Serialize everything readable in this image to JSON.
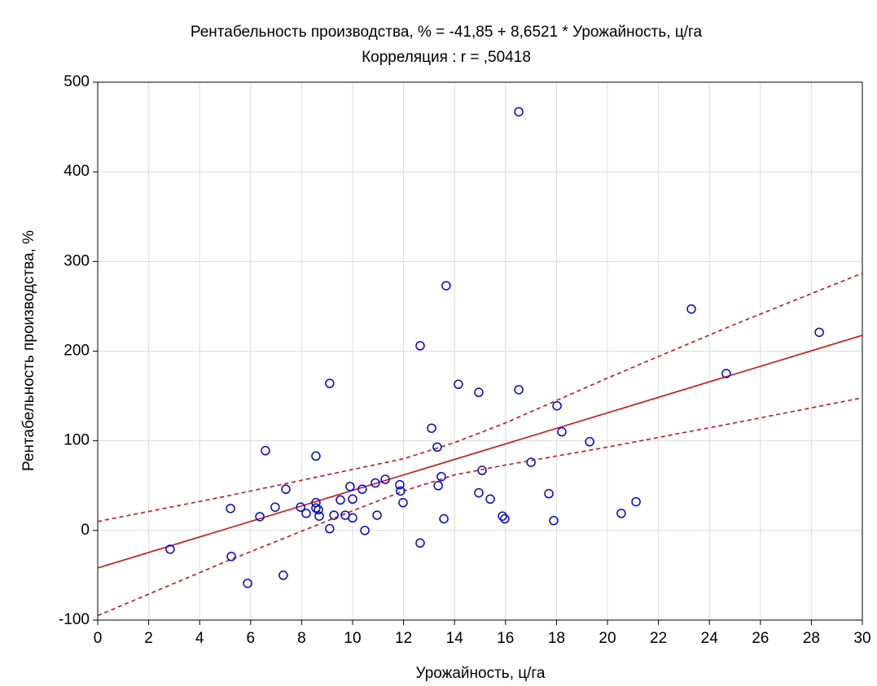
{
  "chart_data": {
    "type": "scatter",
    "title": "Рентабельность производства, % = -41,85 + 8,6521 * Урожайность, ц/га",
    "subtitle": "Корреляция : r = ,50418",
    "xlabel": "Урожайность, ц/га",
    "ylabel": "Рентабельность производства, %",
    "xlim": [
      0,
      30
    ],
    "ylim": [
      -100,
      500
    ],
    "xticks": [
      0,
      2,
      4,
      6,
      8,
      10,
      12,
      14,
      16,
      18,
      20,
      22,
      24,
      26,
      28,
      30
    ],
    "yticks": [
      -100,
      0,
      100,
      200,
      300,
      400,
      500
    ],
    "grid": true,
    "points": {
      "color": "#0000ff",
      "x": [
        2.84,
        5.21,
        5.24,
        5.88,
        6.36,
        6.58,
        6.96,
        7.28,
        7.38,
        7.96,
        8.18,
        8.56,
        8.56,
        8.56,
        8.66,
        8.69,
        9.1,
        9.1,
        9.27,
        9.52,
        9.71,
        9.9,
        10.0,
        10.0,
        10.38,
        10.48,
        10.89,
        10.96,
        11.28,
        11.85,
        11.88,
        11.98,
        12.65,
        12.65,
        13.1,
        13.32,
        13.36,
        13.48,
        13.58,
        13.67,
        14.15,
        14.95,
        14.95,
        15.08,
        15.4,
        15.88,
        15.97,
        16.52,
        16.52,
        17.0,
        17.7,
        17.89,
        18.02,
        18.21,
        19.3,
        20.54,
        21.12,
        23.29,
        24.66,
        28.31
      ],
      "values": [
        -21,
        24.5,
        -29,
        -59,
        15.4,
        89,
        26,
        -50,
        46,
        26,
        19,
        83,
        31,
        25,
        23,
        16,
        2,
        164,
        17,
        34,
        17,
        49,
        14,
        35,
        46,
        0,
        53,
        17,
        57,
        51,
        44,
        31,
        206,
        -14,
        114,
        93,
        50,
        60,
        13,
        273,
        163,
        154,
        42,
        67,
        35,
        16,
        13,
        467,
        157,
        76,
        41,
        11,
        139,
        110,
        99,
        19,
        32,
        247,
        175,
        221
      ]
    },
    "fit": {
      "color": "#e00000",
      "x": [
        0,
        30
      ],
      "values": [
        -41.85,
        217.71
      ]
    },
    "bands": [
      {
        "color": "#e00000",
        "x": [
          0,
          5,
          10,
          12,
          14,
          16,
          18,
          20,
          25,
          30
        ],
        "values": [
          10,
          38,
          68,
          80,
          98,
          120,
          145,
          170,
          230,
          287
        ]
      },
      {
        "color": "#e00000",
        "x": [
          0,
          5,
          10,
          12,
          14,
          16,
          18,
          20,
          25,
          30
        ],
        "values": [
          -95,
          -35,
          22,
          44,
          62,
          73,
          83,
          93,
          120,
          148
        ]
      }
    ]
  }
}
